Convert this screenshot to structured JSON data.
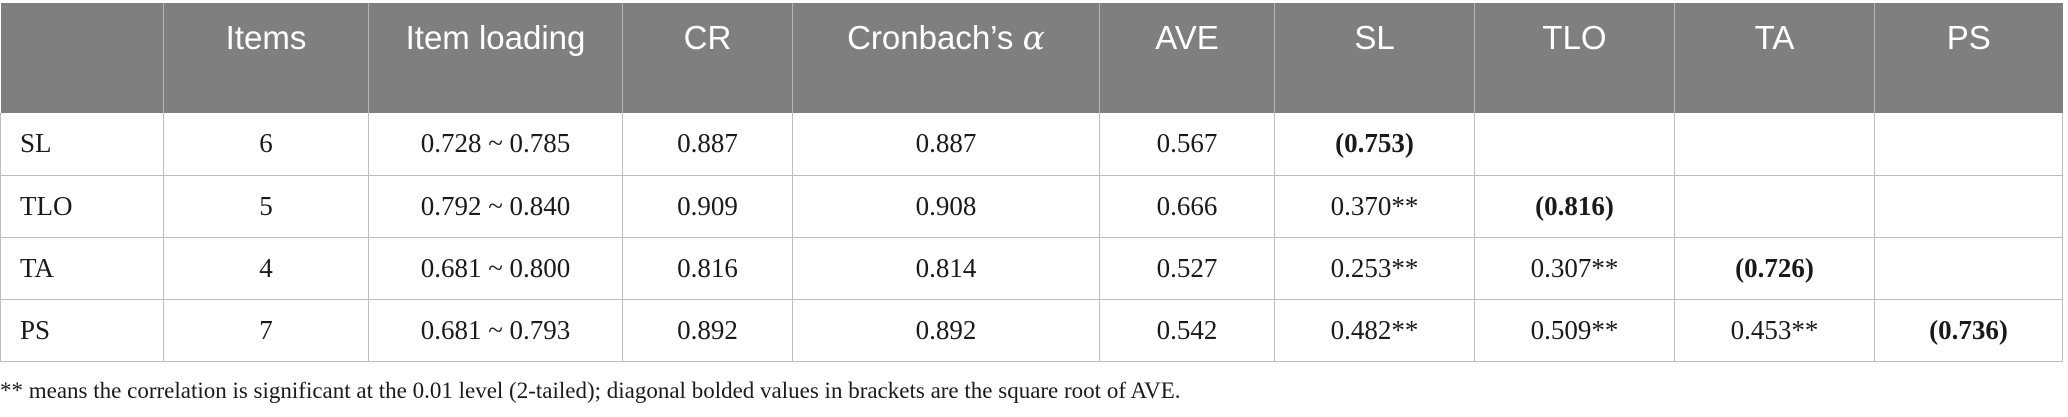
{
  "table": {
    "headers": [
      {
        "text": "",
        "greek": ""
      },
      {
        "text": "Items",
        "greek": ""
      },
      {
        "text": "Item loading",
        "greek": ""
      },
      {
        "text": "CR",
        "greek": ""
      },
      {
        "text": "Cronbach’s ",
        "greek": "α"
      },
      {
        "text": "AVE",
        "greek": ""
      },
      {
        "text": "SL",
        "greek": ""
      },
      {
        "text": "TLO",
        "greek": ""
      },
      {
        "text": "TA",
        "greek": ""
      },
      {
        "text": "PS",
        "greek": ""
      }
    ],
    "rows": [
      {
        "cells": [
          "SL",
          "6",
          "0.728 ~ 0.785",
          "0.887",
          "0.887",
          "0.567",
          "(0.753)",
          "",
          "",
          ""
        ],
        "diagonal_index": 6
      },
      {
        "cells": [
          "TLO",
          "5",
          "0.792 ~ 0.840",
          "0.909",
          "0.908",
          "0.666",
          "0.370**",
          "(0.816)",
          "",
          ""
        ],
        "diagonal_index": 7
      },
      {
        "cells": [
          "TA",
          "4",
          "0.681 ~ 0.800",
          "0.816",
          "0.814",
          "0.527",
          "0.253**",
          "0.307**",
          "(0.726)",
          ""
        ],
        "diagonal_index": 8
      },
      {
        "cells": [
          "PS",
          "7",
          "0.681 ~ 0.793",
          "0.892",
          "0.892",
          "0.542",
          "0.482**",
          "0.509**",
          "0.453**",
          "(0.736)"
        ],
        "diagonal_index": 9
      }
    ]
  },
  "footnote": "** means the correlation is significant at the 0.01 level (2-tailed); diagonal bolded values in brackets are the square root of AVE.",
  "colors": {
    "header_bg": "#7f7f7f",
    "header_text": "#ffffff",
    "grid_line": "#bdbdbd",
    "body_text": "#1a1a1a"
  }
}
